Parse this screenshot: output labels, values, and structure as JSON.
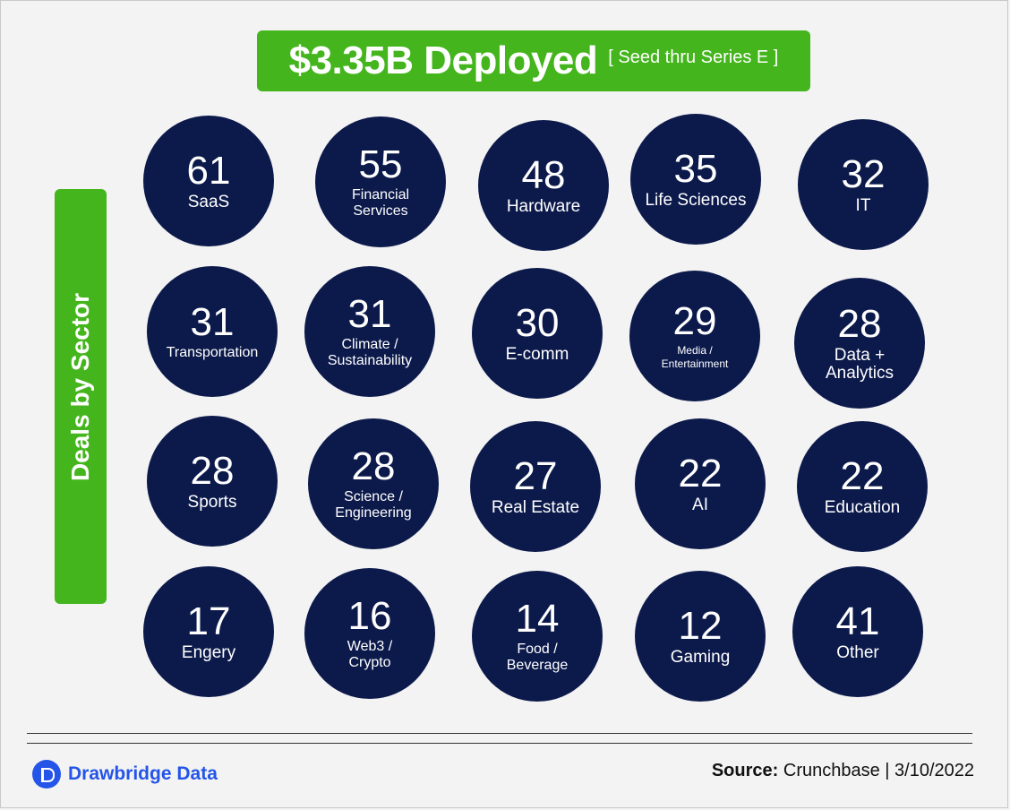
{
  "header": {
    "title": "$3.35B Deployed",
    "subtitle": "[ Seed thru Series E ]"
  },
  "side_label": "Deals by Sector",
  "chart_data": {
    "type": "table",
    "title": "$3.35B Deployed",
    "subtitle": "[ Seed thru Series E ]",
    "ylabel": "Deals by Sector",
    "categories": [
      "SaaS",
      "Financial Services",
      "Hardware",
      "Life Sciences",
      "IT",
      "Transportation",
      "Climate / Sustainability",
      "E-comm",
      "Media / Entertainment",
      "Data + Analytics",
      "Sports",
      "Science / Engineering",
      "Real Estate",
      "AI",
      "Education",
      "Engery",
      "Web3 / Crypto",
      "Food / Beverage",
      "Gaming",
      "Other"
    ],
    "values": [
      61,
      55,
      48,
      35,
      32,
      31,
      31,
      30,
      29,
      28,
      28,
      28,
      27,
      22,
      22,
      17,
      16,
      14,
      12,
      41
    ],
    "bubbles": [
      {
        "value": "61",
        "line1": "SaaS",
        "line2": ""
      },
      {
        "value": "55",
        "line1": "Financial",
        "line2": "Services"
      },
      {
        "value": "48",
        "line1": "Hardware",
        "line2": ""
      },
      {
        "value": "35",
        "line1": "Life Sciences",
        "line2": ""
      },
      {
        "value": "32",
        "line1": "IT",
        "line2": ""
      },
      {
        "value": "31",
        "line1": "Transportation",
        "line2": ""
      },
      {
        "value": "31",
        "line1": "Climate /",
        "line2": "Sustainability"
      },
      {
        "value": "30",
        "line1": "E-comm",
        "line2": ""
      },
      {
        "value": "29",
        "line1": "Media /",
        "line2": "Entertainment"
      },
      {
        "value": "28",
        "line1": "Data +",
        "line2": "Analytics"
      },
      {
        "value": "28",
        "line1": "Sports",
        "line2": ""
      },
      {
        "value": "28",
        "line1": "Science /",
        "line2": "Engineering"
      },
      {
        "value": "27",
        "line1": "Real Estate",
        "line2": ""
      },
      {
        "value": "22",
        "line1": "AI",
        "line2": ""
      },
      {
        "value": "22",
        "line1": "Education",
        "line2": ""
      },
      {
        "value": "17",
        "line1": "Engery",
        "line2": ""
      },
      {
        "value": "16",
        "line1": "Web3 /",
        "line2": "Crypto"
      },
      {
        "value": "14",
        "line1": "Food /",
        "line2": "Beverage"
      },
      {
        "value": "12",
        "line1": "Gaming",
        "line2": ""
      },
      {
        "value": "41",
        "line1": "Other",
        "line2": ""
      }
    ]
  },
  "footer": {
    "brand": "Drawbridge Data",
    "source_label": "Source:",
    "source_text": "Crunchbase | 3/10/2022",
    "brand_icon": "drawbridge-d-icon"
  },
  "colors": {
    "green": "#44b51c",
    "navy": "#0c1a4b",
    "brand_blue": "#2454e8"
  }
}
